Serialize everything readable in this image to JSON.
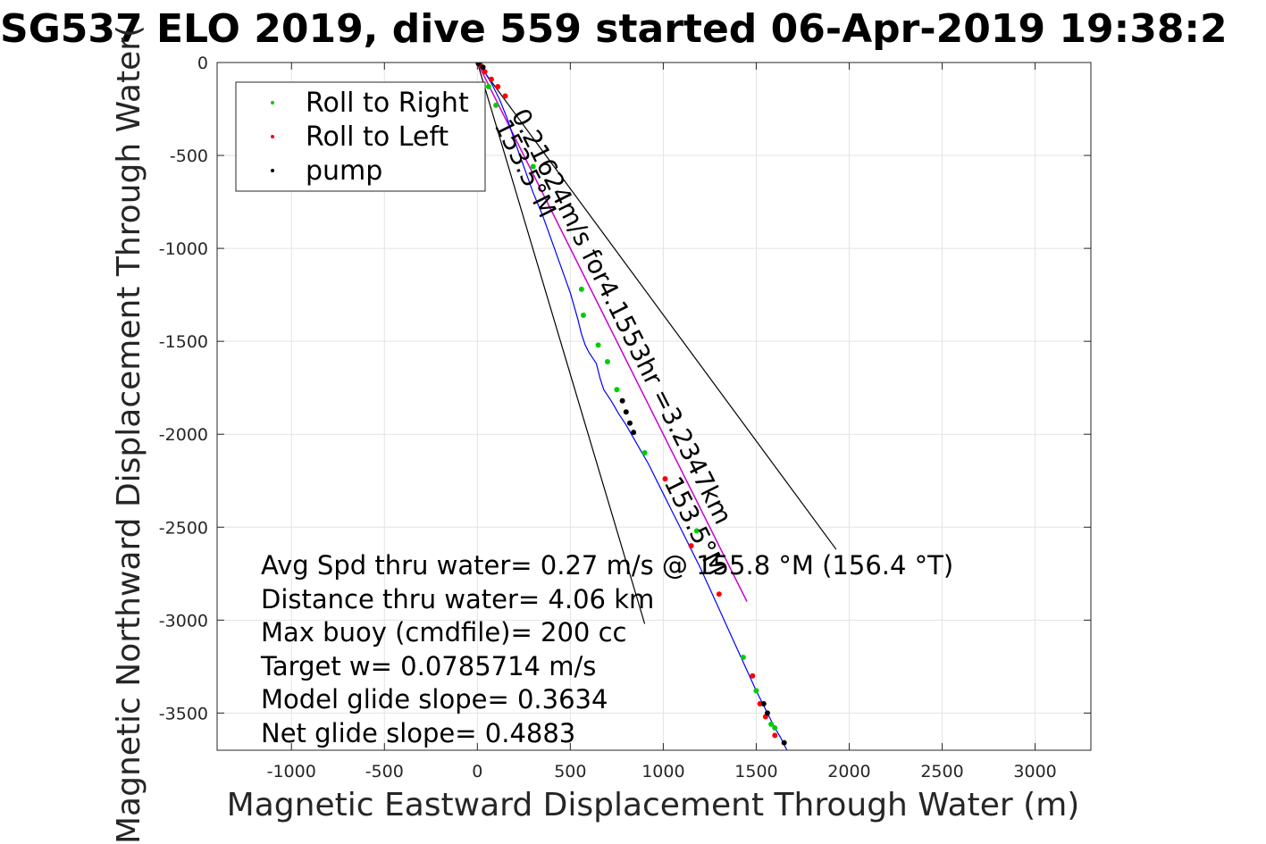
{
  "chart_data": {
    "type": "line",
    "title": "SG537 ELO 2019, dive 559 started 06-Apr-2019 19:38:2",
    "xlabel": "Magnetic Eastward Displacement Through Water (m)",
    "ylabel": "Magnetic Northward Displacement Through Water(",
    "xlim": [
      -1400,
      3300
    ],
    "ylim": [
      -3700,
      0
    ],
    "xticks": [
      -1000,
      -500,
      0,
      500,
      1000,
      1500,
      2000,
      2500,
      3000
    ],
    "yticks": [
      0,
      -500,
      -1000,
      -1500,
      -2000,
      -2500,
      -3000,
      -3500
    ],
    "xtick_labels": [
      "-1000",
      "-500",
      "0",
      "500",
      "1000",
      "1500",
      "2000",
      "2500",
      "3000"
    ],
    "ytick_labels": [
      "0",
      "-500",
      "-1000",
      "-1500",
      "-2000",
      "-2500",
      "-3000",
      "-3500"
    ],
    "grid": true,
    "legend_position": "top-left",
    "legend": [
      {
        "label": "Roll to Right",
        "color": "#00cc00"
      },
      {
        "label": "Roll to Left",
        "color": "#ff0000"
      },
      {
        "label": "pump",
        "color": "#000000"
      }
    ],
    "track": {
      "color": "#0000ff",
      "x": [
        0,
        20,
        45,
        80,
        120,
        160,
        200,
        250,
        300,
        350,
        400,
        450,
        500,
        540,
        560,
        580,
        600,
        640,
        660,
        680,
        720,
        760,
        800,
        840,
        880,
        920,
        960,
        1000,
        1050,
        1100,
        1150,
        1200,
        1250,
        1300,
        1350,
        1400,
        1450,
        1500,
        1540,
        1570,
        1600,
        1630,
        1650,
        1665
      ],
      "y": [
        0,
        -20,
        -60,
        -120,
        -200,
        -300,
        -420,
        -560,
        -700,
        -820,
        -960,
        -1100,
        -1240,
        -1380,
        -1460,
        -1520,
        -1560,
        -1620,
        -1700,
        -1760,
        -1820,
        -1890,
        -1950,
        -2020,
        -2090,
        -2160,
        -2240,
        -2320,
        -2420,
        -2520,
        -2620,
        -2720,
        -2830,
        -2940,
        -3050,
        -3160,
        -3270,
        -3380,
        -3460,
        -3520,
        -3580,
        -3630,
        -3670,
        -3700
      ]
    },
    "roll_right_points": {
      "x": [
        60,
        100,
        300,
        560,
        570,
        650,
        700,
        750,
        900,
        1180,
        1430,
        1500,
        1580,
        1600
      ],
      "y": [
        -130,
        -230,
        -560,
        -1220,
        -1360,
        -1520,
        -1610,
        -1760,
        -2100,
        -2520,
        -3200,
        -3380,
        -3560,
        -3580
      ]
    },
    "roll_left_points": {
      "x": [
        15,
        40,
        75,
        110,
        150,
        1010,
        1150,
        1300,
        1480,
        1520,
        1550,
        1600
      ],
      "y": [
        -10,
        -50,
        -90,
        -130,
        -180,
        -2240,
        -2600,
        -2860,
        -3300,
        -3450,
        -3520,
        -3620
      ]
    },
    "pump_points": {
      "x": [
        5,
        30,
        780,
        800,
        820,
        840,
        1540,
        1560,
        1650
      ],
      "y": [
        -5,
        -25,
        -1820,
        -1880,
        -1940,
        -1990,
        -3450,
        -3500,
        -3660
      ]
    },
    "net_vector": {
      "x": [
        0,
        1450
      ],
      "y": [
        0,
        -2900
      ],
      "color": "#cc00cc"
    },
    "heading_lines": [
      {
        "x": [
          0,
          900
        ],
        "y": [
          0,
          -3020
        ]
      },
      {
        "x": [
          0,
          1930
        ],
        "y": [
          0,
          -2620
        ]
      }
    ],
    "annotations": {
      "current_label": "0.21624m/s for4.1553hr =3.2347km",
      "heading_label_upper": "153.5°M",
      "heading_label_lower": "153.5°M"
    },
    "stats": [
      "Avg Spd thru water=  0.27 m/s @ 155.8 °M (156.4 °T)",
      "Distance thru water=  4.06 km",
      "Max buoy (cmdfile)= 200 cc",
      "Target w= 0.0785714 m/s",
      "Model glide slope= 0.3634",
      "Net glide slope= 0.4883"
    ]
  }
}
